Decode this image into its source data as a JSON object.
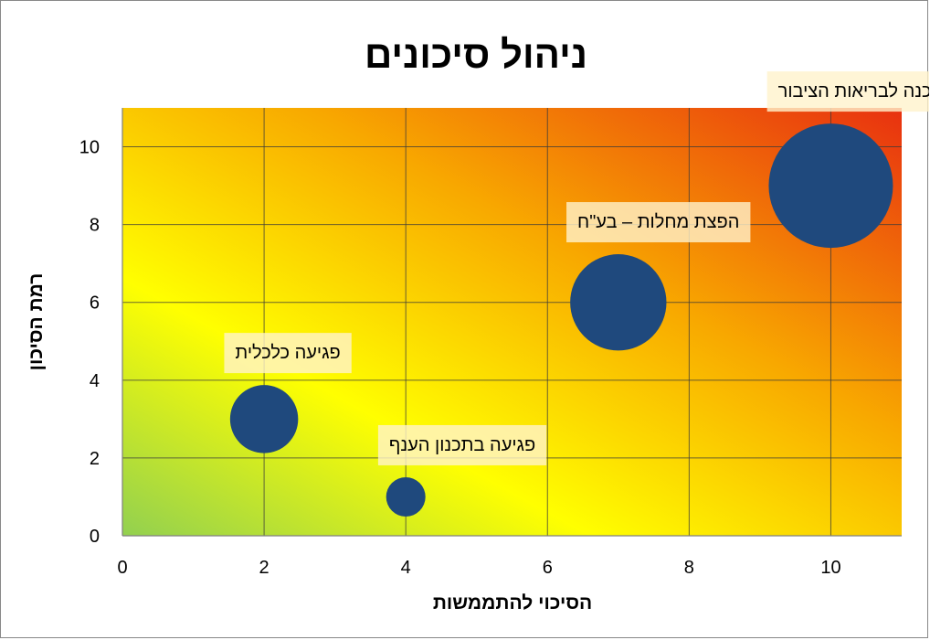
{
  "chart_data": {
    "type": "bubble",
    "title": "ניהול סיכונים",
    "xlabel": "הסיכוי להתממשות",
    "ylabel": "רמת הסיכון",
    "xlim": [
      0,
      11
    ],
    "ylim": [
      0,
      11
    ],
    "xticks": [
      0,
      2,
      4,
      6,
      8,
      10
    ],
    "yticks": [
      0,
      2,
      4,
      6,
      8,
      10
    ],
    "grid": true,
    "background_gradient": [
      "#92d050",
      "#ffff00",
      "#f8a800",
      "#e83010"
    ],
    "bubble_color": "#1f497d",
    "label_background": "#fff2cc",
    "points": [
      {
        "label": "פגיעה בתכנון הענף",
        "x": 4,
        "y": 1,
        "size": 1
      },
      {
        "label": "פגיעה כלכלית",
        "x": 2,
        "y": 3,
        "size": 3
      },
      {
        "label": "הפצת מחלות – בע\"ח",
        "x": 7,
        "y": 6,
        "size": 6
      },
      {
        "label": "סכנה לבריאות הציבור",
        "x": 10,
        "y": 9,
        "size": 10
      }
    ]
  }
}
